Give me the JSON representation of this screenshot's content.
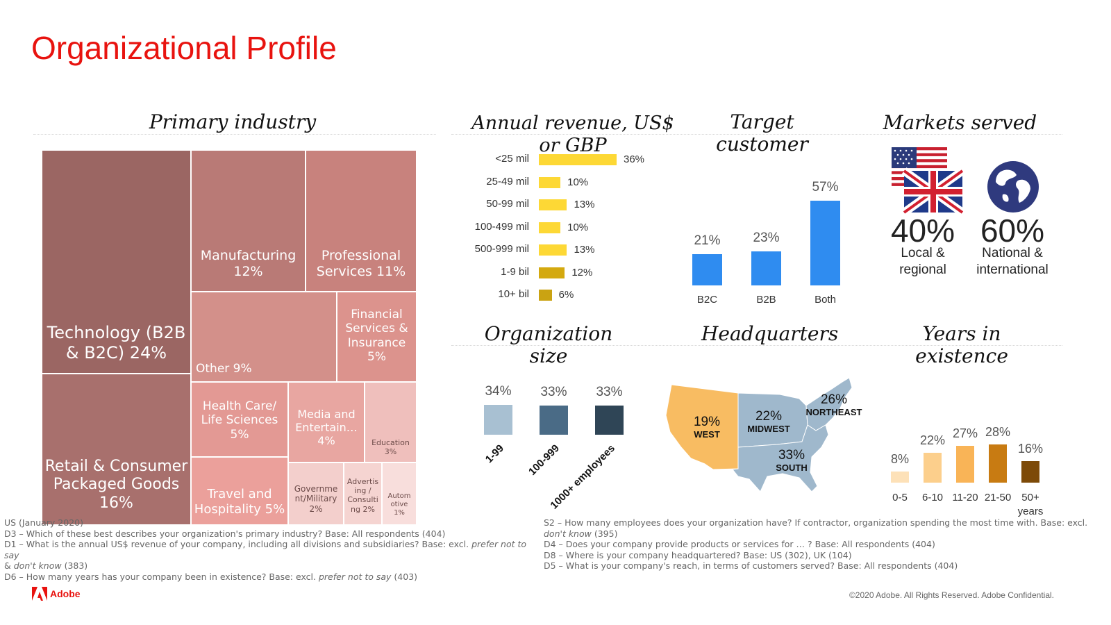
{
  "page": {
    "title": "Organizational Profile",
    "copyright": "©2020 Adobe. All Rights Reserved. Adobe Confidential.",
    "logo_text": "Adobe",
    "footnotes_left": [
      "US (January 2020)",
      "D3  – Which of these best describes your organization's primary industry? Base: All respondents (404)",
      "D1 – What is the annual US$ revenue of your company, including all divisions and subsidiaries? Base: excl. ",
      "prefer not to say",
      "& ",
      "don't know",
      " (383)",
      "D6 – How many years has your company been in existence? Base: excl. ",
      "prefer not to say",
      " (403)"
    ],
    "footnotes_right": [
      "S2 – How many employees does your organization have? If contractor, organization spending the most time with. Base: excl. ",
      "don't know",
      " (395)",
      "D4 – Does your company provide products or services for … ? Base: All respondents (404)",
      "D8 – Where is your company headquartered? Base: US (302), UK (104)",
      "D5 – What is your company's reach, in terms of customers served? Base: All respondents (404)"
    ]
  },
  "sections": {
    "industry": "Primary industry",
    "revenue": "Annual revenue, US$ or GBP",
    "target": "Target customer",
    "markets": "Markets served",
    "size": "Organization size",
    "hq": "Headquarters",
    "years": "Years in existence"
  },
  "chart_data": [
    {
      "id": "industry",
      "type": "treemap",
      "title": "Primary industry",
      "cells": [
        {
          "name": "Technology (B2B & B2C)",
          "value": 24,
          "label": "Technology (B2B & B2C) 24%",
          "color": "#9b6663"
        },
        {
          "name": "Retail & Consumer Packaged Goods",
          "value": 16,
          "label": "Retail & Consumer Packaged Goods 16%",
          "color": "#a8706d"
        },
        {
          "name": "Manufacturing",
          "value": 12,
          "label": "Manufacturing 12%",
          "color": "#b97a76"
        },
        {
          "name": "Professional Services",
          "value": 11,
          "label": "Professional Services 11%",
          "color": "#c8827d"
        },
        {
          "name": "Other",
          "value": 9,
          "label": "Other 9%",
          "color": "#d3908a"
        },
        {
          "name": "Financial Services & Insurance",
          "value": 5,
          "label": "Financial Services & Insurance 5%",
          "color": "#dc938d"
        },
        {
          "name": "Health Care/ Life Sciences",
          "value": 5,
          "label": "Health Care/ Life Sciences 5%",
          "color": "#e39994"
        },
        {
          "name": "Media and Entertain…",
          "value": 4,
          "label": "Media and Entertain… 4%",
          "color": "#e8a6a1"
        },
        {
          "name": "Education",
          "value": 3,
          "label": "Education 3%",
          "color": "#efbfbc"
        },
        {
          "name": "Travel and Hospitality",
          "value": 5,
          "label": "Travel and Hospitality 5%",
          "color": "#eba09b"
        },
        {
          "name": "Government/Military",
          "value": 2,
          "label": "Governme nt/Military 2%",
          "color": "#f3cfcc"
        },
        {
          "name": "Advertising / Consulting",
          "value": 2,
          "label": "Advertis ing / Consulti ng 2%",
          "color": "#f5d4d1"
        },
        {
          "name": "Automotive",
          "value": 1,
          "label": "Autom otive 1%",
          "color": "#f8dedc"
        }
      ]
    },
    {
      "id": "revenue",
      "type": "bar",
      "orientation": "horizontal",
      "title": "Annual revenue, US$ or GBP",
      "categories": [
        "<25 mil",
        "25-49 mil",
        "50-99 mil",
        "100-499 mil",
        "500-999 mil",
        "1-9 bil",
        "10+ bil"
      ],
      "values": [
        36,
        10,
        13,
        10,
        13,
        12,
        6
      ],
      "labels": [
        "36%",
        "10%",
        "13%",
        "10%",
        "13%",
        "12%",
        "6%"
      ],
      "colors": [
        "#fdd835",
        "#fdd835",
        "#fdd835",
        "#fdd835",
        "#fdd835",
        "#d4a90f",
        "#caa312"
      ]
    },
    {
      "id": "target",
      "type": "bar",
      "title": "Target customer",
      "categories": [
        "B2C",
        "B2B",
        "Both"
      ],
      "values": [
        21,
        23,
        57
      ],
      "labels": [
        "21%",
        "23%",
        "57%"
      ],
      "color": "#2f8cf0"
    },
    {
      "id": "markets",
      "type": "table",
      "title": "Markets served",
      "items": [
        {
          "value": "40%",
          "label_line1": "Local &",
          "label_line2": "regional",
          "icon": "us-uk-flags-icon"
        },
        {
          "value": "60%",
          "label_line1": "National &",
          "label_line2": "international",
          "icon": "globe-icon"
        }
      ]
    },
    {
      "id": "size",
      "type": "bar",
      "title": "Organization size",
      "categories": [
        "1-99",
        "100-999",
        "1000+ employees"
      ],
      "values": [
        34,
        33,
        33
      ],
      "labels": [
        "34%",
        "33%",
        "33%"
      ],
      "colors": [
        "#a8c0d2",
        "#4a6b86",
        "#2f4556"
      ]
    },
    {
      "id": "hq",
      "type": "table",
      "title": "Headquarters",
      "regions": [
        {
          "name": "WEST",
          "value": "19%",
          "color": "#f8bc62"
        },
        {
          "name": "MIDWEST",
          "value": "22%",
          "color": "#9fb8cc"
        },
        {
          "name": "SOUTH",
          "value": "33%",
          "color": "#9fb8cc"
        },
        {
          "name": "NORTHEAST",
          "value": "26%",
          "color": "#9fb8cc"
        }
      ]
    },
    {
      "id": "years",
      "type": "bar",
      "title": "Years in existence",
      "categories": [
        "0-5",
        "6-10",
        "11-20",
        "21-50",
        "50+ years"
      ],
      "values": [
        8,
        22,
        27,
        28,
        16
      ],
      "labels": [
        "8%",
        "22%",
        "27%",
        "28%",
        "16%"
      ],
      "colors": [
        "#fde1b8",
        "#fccf8c",
        "#f9b457",
        "#c87b12",
        "#7d4a08"
      ]
    }
  ]
}
